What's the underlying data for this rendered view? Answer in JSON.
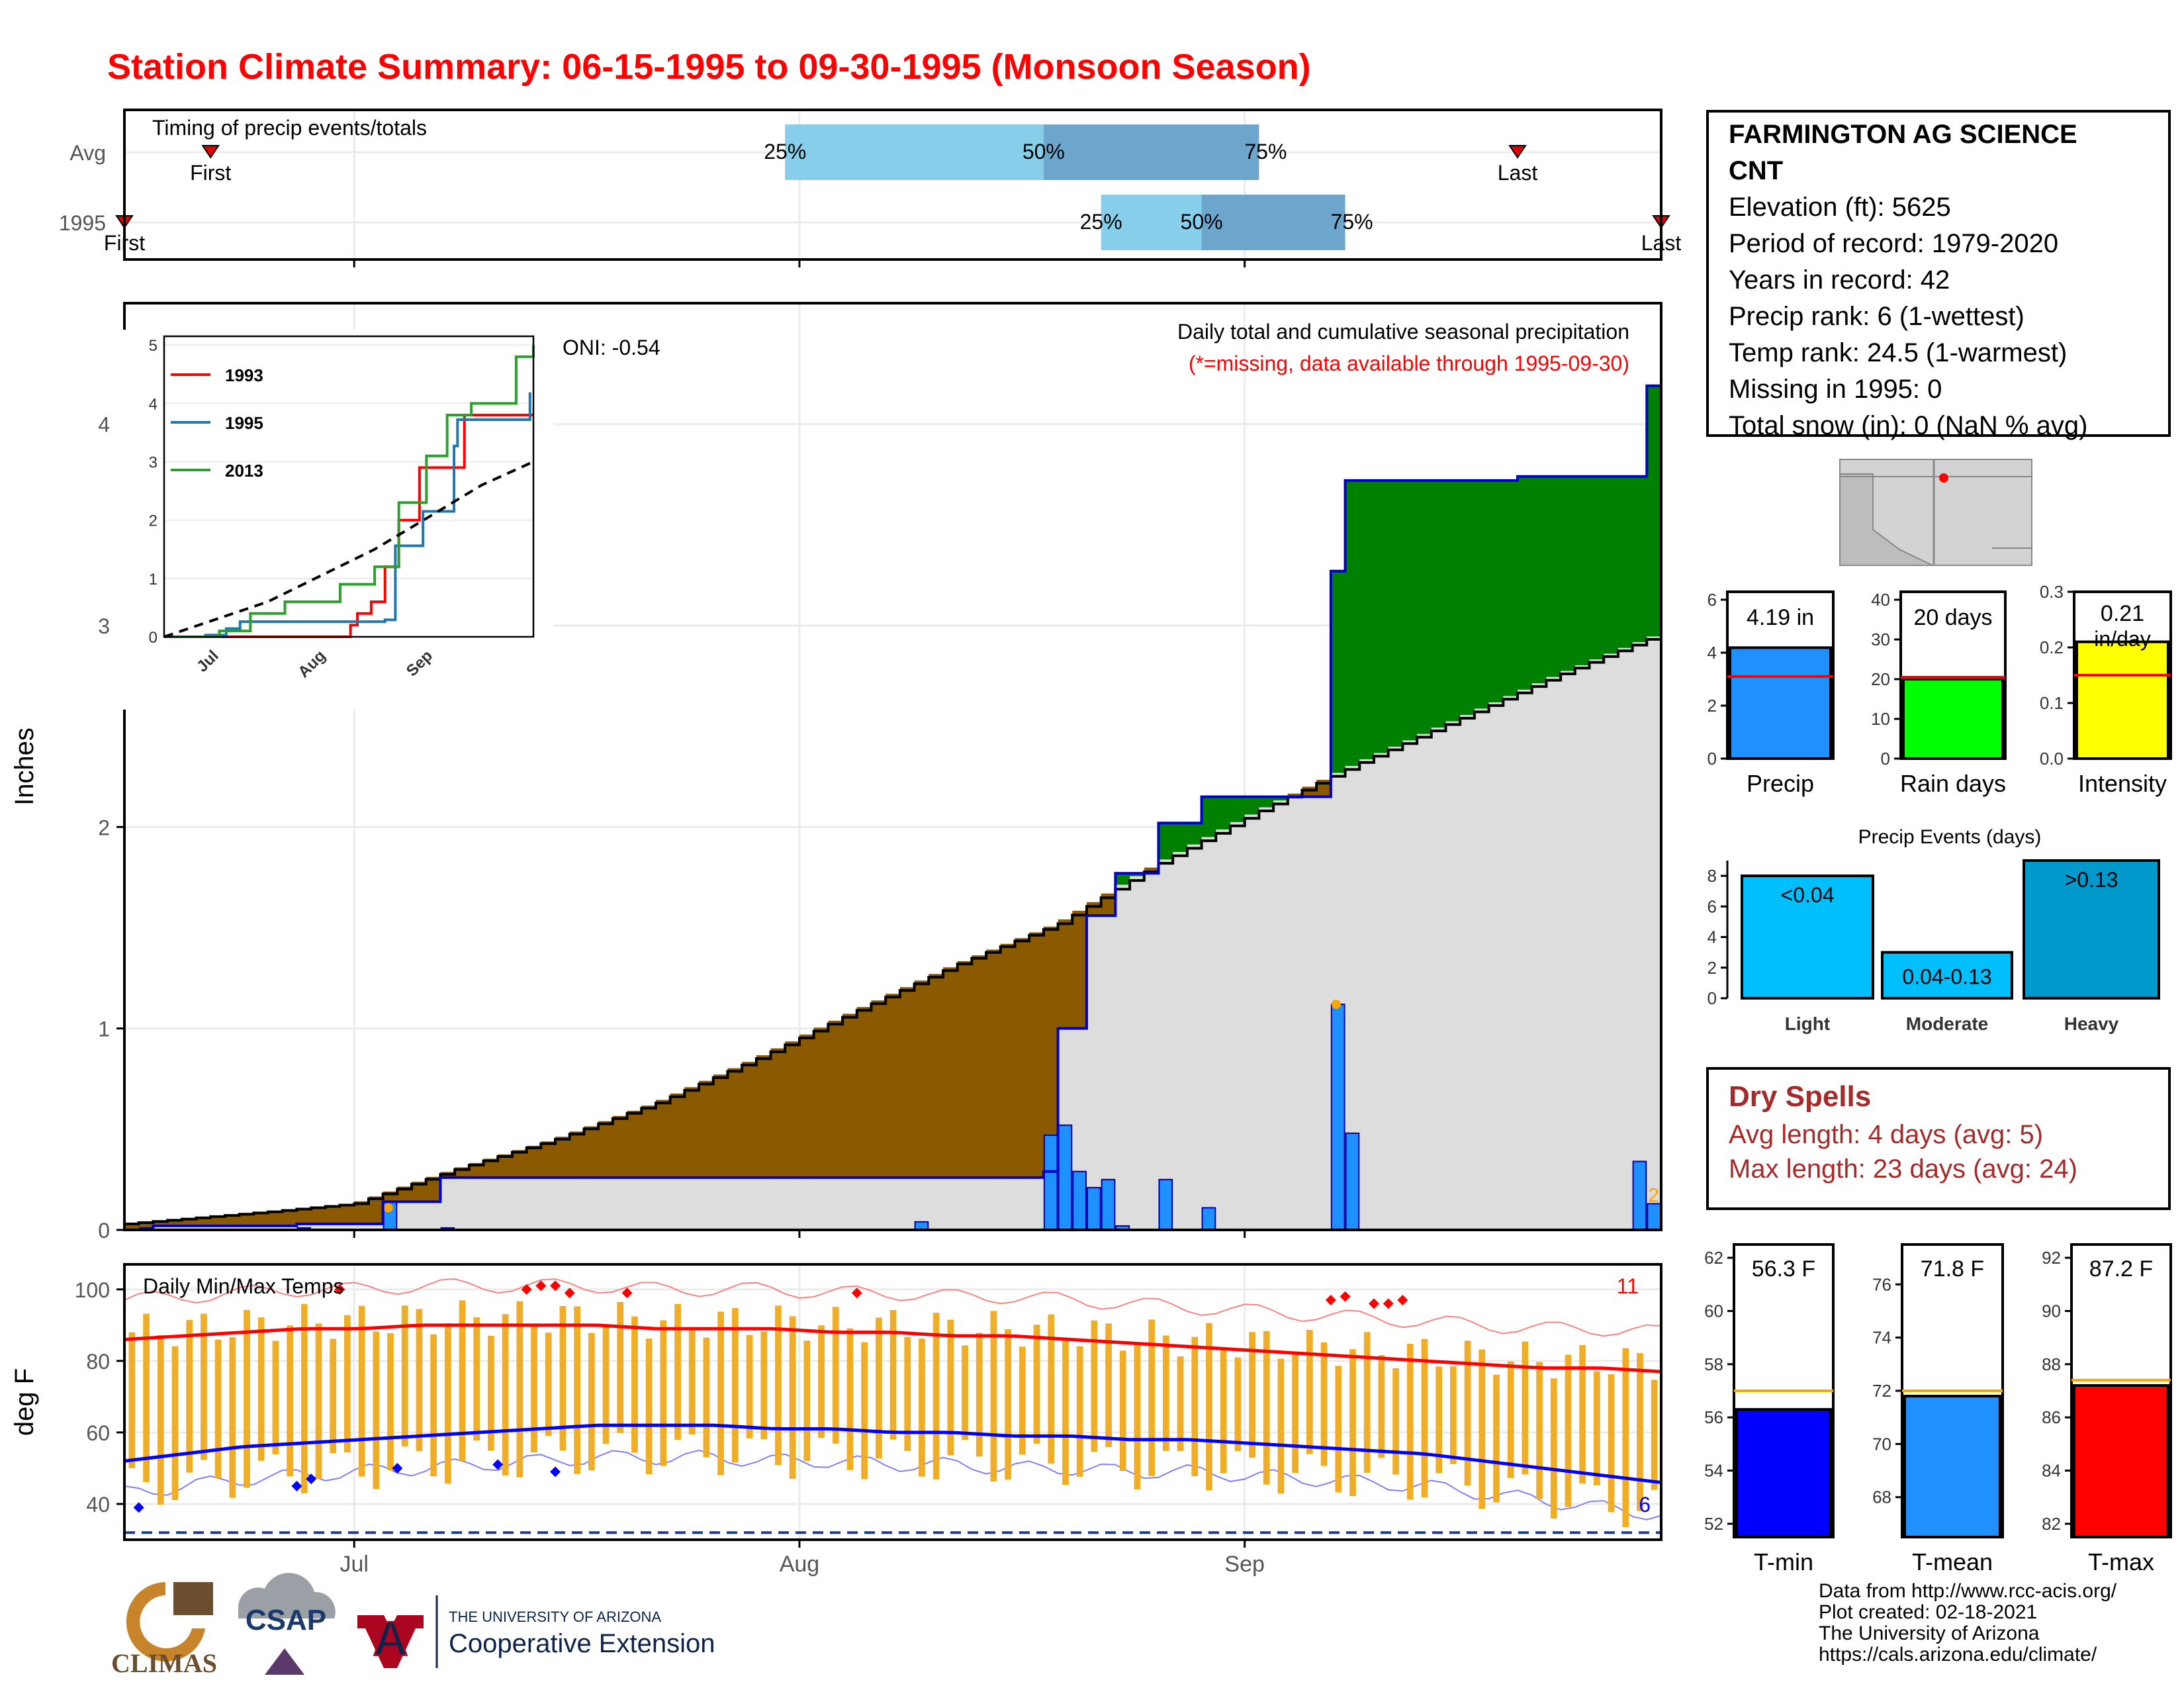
{
  "title": "Station Climate Summary: 06-15-1995 to 09-30-1995 (Monsoon Season)",
  "timing": {
    "label": "Timing of precip events/totals",
    "rows": [
      {
        "year": "Avg",
        "first_label": "First",
        "last_label": "Last",
        "q25": "25%",
        "q50": "50%",
        "q75": "75%"
      },
      {
        "year": "1995",
        "first_label": "First",
        "last_label": "Last",
        "q25": "25%",
        "q50": "50%",
        "q75": "75%"
      }
    ]
  },
  "main": {
    "ylabel": "Inches",
    "oni": "ONI: -0.54",
    "caption": "Daily total and cumulative seasonal precipitation",
    "missing_note": "(*=missing, data available through 1995-09-30)",
    "yticks": [
      "0",
      "1",
      "2",
      "3",
      "4"
    ],
    "xticks": [
      "Jul",
      "Aug",
      "Sep"
    ],
    "last_bar_label": "2"
  },
  "inset": {
    "yticks": [
      "0",
      "1",
      "2",
      "3",
      "4",
      "5"
    ],
    "xticks": [
      "Jul",
      "Aug",
      "Sep"
    ],
    "legend": [
      {
        "name": "1993",
        "color": "#ff0000"
      },
      {
        "name": "1995",
        "color": "#1f77b4"
      },
      {
        "name": "2013",
        "color": "#2ca02c"
      }
    ]
  },
  "temps": {
    "label": "Daily Min/Max Temps",
    "ylabel": "deg F",
    "yticks": [
      "40",
      "60",
      "80",
      "100"
    ],
    "count_high": "11",
    "count_low": "6"
  },
  "station": {
    "name": "FARMINGTON AG SCIENCE CNT",
    "elevation": "Elevation (ft): 5625",
    "period": "Period of record: 1979-2020",
    "years": "Years in record: 42",
    "precip_rank": "Precip rank: 6 (1-wettest)",
    "temp_rank": "Temp rank: 24.5 (1-warmest)",
    "missing": "Missing in 1995: 0",
    "snow": "Total snow (in): 0 (NaN % avg)"
  },
  "minis": {
    "precip": {
      "label": "Precip",
      "value_label": "4.19 in",
      "yticks": [
        "0",
        "2",
        "4",
        "6"
      ]
    },
    "raindays": {
      "label": "Rain days",
      "value_label": "20 days",
      "yticks": [
        "0",
        "10",
        "20",
        "30",
        "40"
      ]
    },
    "intensity": {
      "label": "Intensity",
      "value_label": "0.21",
      "unit_label": "in/day",
      "yticks": [
        "0.0",
        "0.1",
        "0.2",
        "0.3"
      ]
    }
  },
  "events": {
    "title": "Precip Events (days)",
    "yticks": [
      "0",
      "2",
      "4",
      "6",
      "8"
    ],
    "bars": [
      {
        "cat": "Light",
        "label": "<0.04"
      },
      {
        "cat": "Moderate",
        "label": "0.04-0.13"
      },
      {
        "cat": "Heavy",
        "label": ">0.13"
      }
    ]
  },
  "dry": {
    "heading": "Dry Spells",
    "avg": "Avg length: 4 days (avg: 5)",
    "max": "Max length: 23 days (avg: 24)"
  },
  "temp_minis": {
    "tmin": {
      "label": "T-min",
      "value_label": "56.3 F",
      "yticks": [
        "52",
        "54",
        "56",
        "58",
        "60",
        "62"
      ]
    },
    "tmean": {
      "label": "T-mean",
      "value_label": "71.8 F",
      "yticks": [
        "68",
        "70",
        "72",
        "74",
        "76"
      ]
    },
    "tmax": {
      "label": "T-max",
      "value_label": "87.2 F",
      "yticks": [
        "82",
        "84",
        "86",
        "88",
        "90",
        "92"
      ]
    }
  },
  "credits": {
    "l1": "Data from http://www.rcc-acis.org/",
    "l2": "Plot created: 02-18-2021",
    "l3": "The University of Arizona",
    "l4": "https://cals.arizona.edu/climate/"
  },
  "logos": {
    "climas": "CLIMAS",
    "csap": "CSAP",
    "ua_small": "THE UNIVERSITY OF ARIZONA",
    "ua_big": "Cooperative Extension",
    "ua_letter": "A"
  },
  "colors": {
    "title": "#ff0000",
    "cum_1995": "#0000cd",
    "daily_bar": "#1e90ff",
    "above_avg": "#008000",
    "below_avg": "#8b5a00",
    "avg_fill": "#dddddd",
    "tmax_line": "#ff0000",
    "tmin_line": "#0000ff",
    "temp_bar": "#f0ad28",
    "q_light": "#87ceeb",
    "q_dark": "#6ca6cd"
  },
  "chart_data": [
    {
      "type": "bar",
      "name": "timing",
      "categories": [
        "Avg",
        "1995"
      ],
      "series": [
        {
          "name": "First",
          "values": [
            "1995-06-21",
            "1995-06-15"
          ]
        },
        {
          "name": "25%",
          "values": [
            "1995-07-31",
            "1995-08-22"
          ]
        },
        {
          "name": "50%",
          "values": [
            "1995-08-18",
            "1995-08-29"
          ]
        },
        {
          "name": "75%",
          "values": [
            "1995-09-02",
            "1995-09-08"
          ]
        },
        {
          "name": "Last",
          "values": [
            "1995-09-20",
            "1995-09-30"
          ]
        }
      ]
    },
    {
      "type": "area",
      "name": "cumulative_precip",
      "ylabel": "Inches",
      "ylim": [
        0,
        4.5
      ],
      "xlim": [
        "1995-06-15",
        "1995-09-30"
      ],
      "series": [
        {
          "name": "1995",
          "x": [
            "06-15",
            "06-17",
            "06-27",
            "07-03",
            "07-07",
            "08-18",
            "08-19",
            "08-21",
            "08-23",
            "08-26",
            "08-29",
            "09-04",
            "09-07",
            "09-08",
            "09-11",
            "09-20",
            "09-27",
            "09-29"
          ],
          "y": [
            0.0,
            0.02,
            0.03,
            0.14,
            0.26,
            0.29,
            1.0,
            1.56,
            1.77,
            2.02,
            2.15,
            2.15,
            3.27,
            3.72,
            3.72,
            3.74,
            3.74,
            4.19
          ]
        },
        {
          "name": "Avg",
          "x": [
            "06-15",
            "06-20",
            "06-25",
            "07-01",
            "07-08",
            "07-15",
            "07-22",
            "07-29",
            "08-05",
            "08-12",
            "08-19",
            "08-26",
            "09-02",
            "09-09",
            "09-16",
            "09-23",
            "09-30"
          ],
          "y": [
            0.03,
            0.06,
            0.09,
            0.13,
            0.3,
            0.45,
            0.63,
            0.85,
            1.09,
            1.32,
            1.52,
            1.82,
            2.08,
            2.32,
            2.54,
            2.76,
            2.96
          ]
        }
      ],
      "daily": {
        "x": [
          "06-16",
          "06-27",
          "07-03",
          "07-07",
          "08-09",
          "08-18",
          "08-19",
          "08-20",
          "08-21",
          "08-22",
          "08-23",
          "08-26",
          "08-29",
          "09-07",
          "09-08",
          "09-28",
          "09-29"
        ],
        "y": [
          0.01,
          0.01,
          0.14,
          0.01,
          0.04,
          0.47,
          0.52,
          0.29,
          0.21,
          0.25,
          0.02,
          0.25,
          0.11,
          1.12,
          0.48,
          0.34,
          0.13
        ]
      }
    },
    {
      "type": "line",
      "name": "inset_cumulative",
      "xlim": [
        "06-15",
        "09-30"
      ],
      "ylim": [
        0,
        5
      ],
      "series": [
        {
          "name": "1993",
          "x": [
            "06-15",
            "08-05",
            "08-08",
            "08-10",
            "08-14",
            "08-18",
            "08-22",
            "08-28",
            "09-10",
            "09-30"
          ],
          "y": [
            0,
            0,
            0.2,
            0.4,
            0.6,
            1.2,
            2.0,
            2.9,
            3.8,
            3.8
          ]
        },
        {
          "name": "1995",
          "x": [
            "06-15",
            "06-27",
            "07-03",
            "07-07",
            "08-18",
            "08-21",
            "08-29",
            "09-07",
            "09-08",
            "09-29"
          ],
          "y": [
            0,
            0.03,
            0.14,
            0.26,
            0.29,
            1.56,
            2.15,
            3.27,
            3.72,
            4.19
          ]
        },
        {
          "name": "2013",
          "x": [
            "06-15",
            "07-01",
            "07-10",
            "07-20",
            "08-05",
            "08-15",
            "08-22",
            "08-30",
            "09-05",
            "09-12",
            "09-25",
            "09-30"
          ],
          "y": [
            0,
            0.1,
            0.4,
            0.6,
            0.9,
            1.2,
            2.3,
            3.1,
            3.8,
            4.0,
            4.8,
            5.0
          ]
        },
        {
          "name": "Avg",
          "x": [
            "06-15",
            "07-15",
            "08-15",
            "09-01",
            "09-15",
            "09-30"
          ],
          "y": [
            0,
            0.6,
            1.5,
            2.1,
            2.6,
            3.0
          ]
        }
      ]
    },
    {
      "type": "bar",
      "name": "daily_temps",
      "ylabel": "deg F",
      "ylim": [
        30,
        107
      ],
      "tmax_avg": [
        86,
        87,
        88,
        89,
        89,
        90,
        90,
        90,
        90,
        89,
        89,
        89,
        88,
        88,
        87,
        87,
        86,
        85,
        84,
        83,
        82,
        81,
        80,
        79,
        78,
        78,
        77
      ],
      "tmin_avg": [
        52,
        54,
        56,
        57,
        58,
        59,
        60,
        61,
        62,
        62,
        62,
        61,
        61,
        60,
        60,
        59,
        59,
        58,
        58,
        57,
        56,
        55,
        54,
        52,
        50,
        48,
        46
      ],
      "records": {
        "hot_days": 11,
        "cold_days": 6
      }
    },
    {
      "type": "bar",
      "name": "season_totals",
      "categories": [
        "Precip",
        "Rain days",
        "Intensity"
      ],
      "values": [
        4.19,
        20,
        0.21
      ],
      "averages": [
        3.1,
        20.5,
        0.15
      ],
      "ylims": [
        [
          0,
          6
        ],
        [
          0,
          40
        ],
        [
          0,
          0.3
        ]
      ]
    },
    {
      "type": "bar",
      "name": "precip_events",
      "title": "Precip Events (days)",
      "categories": [
        "Light",
        "Moderate",
        "Heavy"
      ],
      "values": [
        8,
        3,
        9
      ],
      "ylim": [
        0,
        9
      ]
    },
    {
      "type": "bar",
      "name": "season_temps",
      "categories": [
        "T-min",
        "T-mean",
        "T-max"
      ],
      "values": [
        56.3,
        71.8,
        87.2
      ],
      "averages": [
        57.0,
        72.0,
        87.4
      ],
      "ylims": [
        [
          51.5,
          62.5
        ],
        [
          66.5,
          77.5
        ],
        [
          81.5,
          92.5
        ]
      ]
    }
  ]
}
